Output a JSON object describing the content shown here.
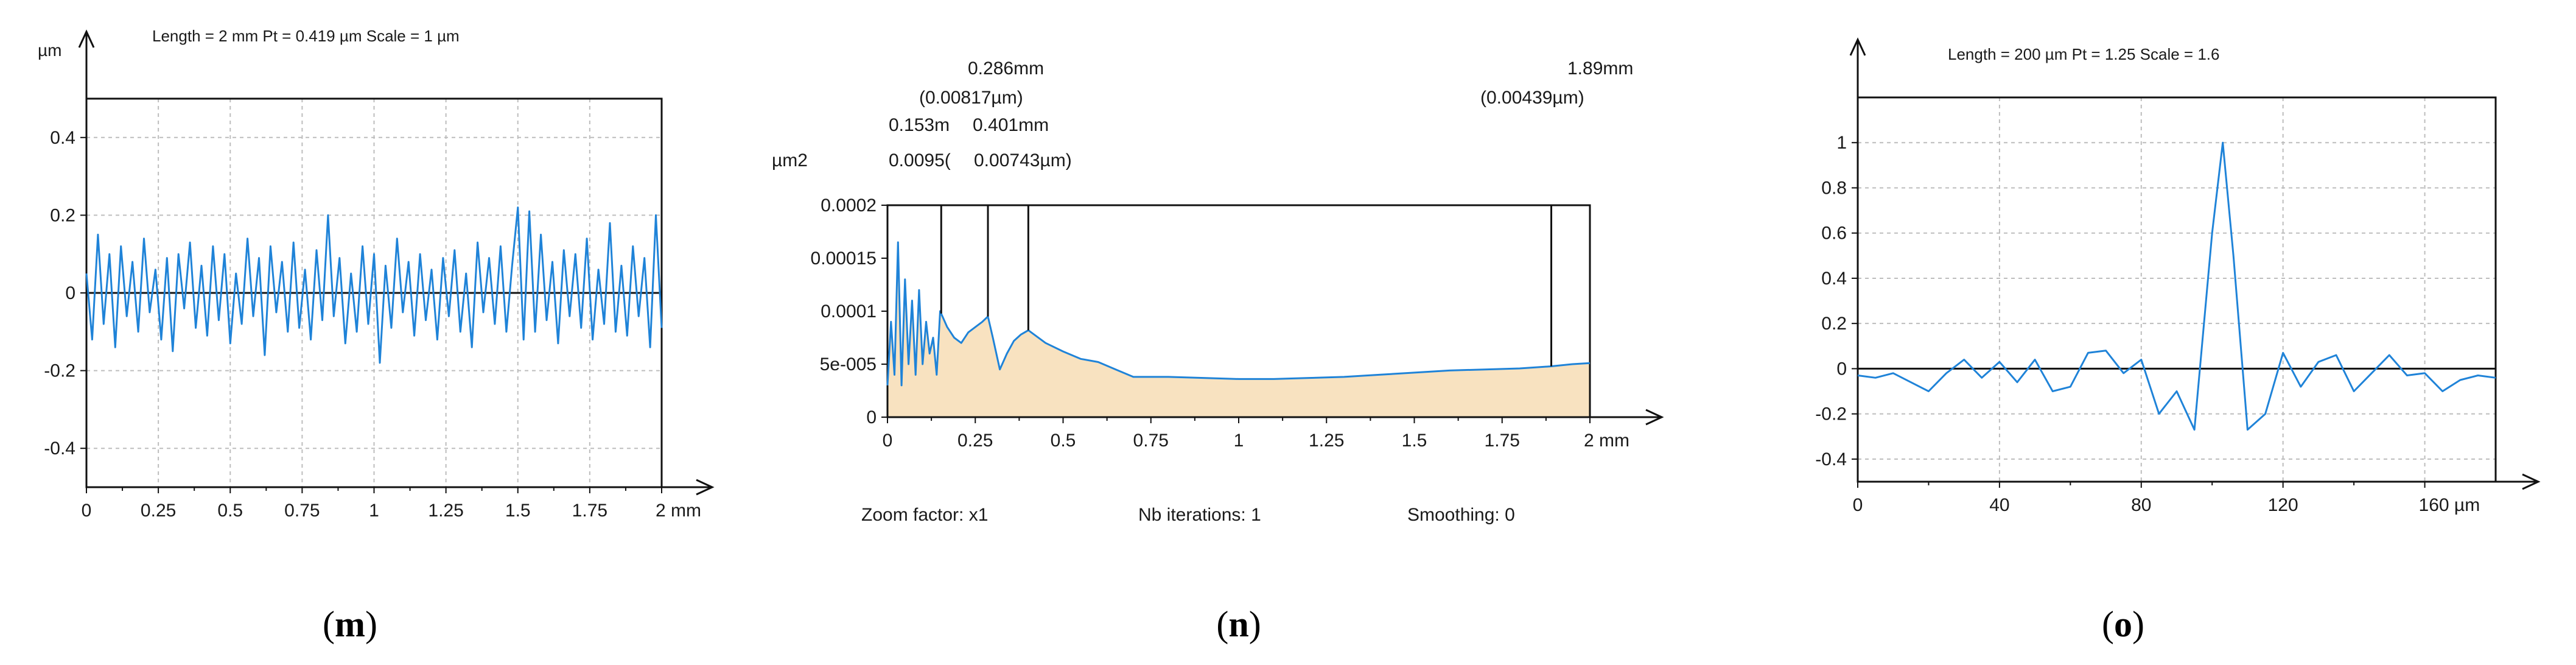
{
  "colors": {
    "series": "#1f83d8",
    "fill": "#f8e2c0",
    "axis": "#111111",
    "grid": "#bdbdbd",
    "frame": "#111111"
  },
  "chart_data": [
    {
      "id": "m",
      "type": "line",
      "header": "Length = 2 mm  Pt = 0.419 µm  Scale = 1 µm",
      "ylabel": "µm",
      "x_unit": "mm",
      "xlim": [
        0,
        2
      ],
      "ylim": [
        -0.5,
        0.5
      ],
      "x_ticks": [
        0,
        0.25,
        0.5,
        0.75,
        1,
        1.25,
        1.5,
        1.75,
        2
      ],
      "x_tick_labels": [
        "0",
        "0.25",
        "0.5",
        "0.75",
        "1",
        "1.25",
        "1.5",
        "1.75",
        "2 mm"
      ],
      "y_ticks": [
        0.4,
        0.2,
        0,
        -0.2,
        -0.4
      ],
      "y_tick_labels": [
        "0.4",
        "0.2",
        "0",
        "-0.2",
        "-0.4"
      ],
      "grid": true,
      "zero_line": true,
      "series": [
        {
          "x": [
            0,
            0.02,
            0.04,
            0.06,
            0.08,
            0.1,
            0.12,
            0.14,
            0.16,
            0.18,
            0.2,
            0.22,
            0.24,
            0.26,
            0.28,
            0.3,
            0.32,
            0.34,
            0.36,
            0.38,
            0.4,
            0.42,
            0.44,
            0.46,
            0.48,
            0.5,
            0.52,
            0.54,
            0.56,
            0.58,
            0.6,
            0.62,
            0.64,
            0.66,
            0.68,
            0.7,
            0.72,
            0.74,
            0.76,
            0.78,
            0.8,
            0.82,
            0.84,
            0.86,
            0.88,
            0.9,
            0.92,
            0.94,
            0.96,
            0.98,
            1,
            1.02,
            1.04,
            1.06,
            1.08,
            1.1,
            1.12,
            1.14,
            1.16,
            1.18,
            1.2,
            1.22,
            1.24,
            1.26,
            1.28,
            1.3,
            1.32,
            1.34,
            1.36,
            1.38,
            1.4,
            1.42,
            1.44,
            1.46,
            1.48,
            1.5,
            1.52,
            1.54,
            1.56,
            1.58,
            1.6,
            1.62,
            1.64,
            1.66,
            1.68,
            1.7,
            1.72,
            1.74,
            1.76,
            1.78,
            1.8,
            1.82,
            1.84,
            1.86,
            1.88,
            1.9,
            1.92,
            1.94,
            1.96,
            1.98,
            2
          ],
          "y": [
            0.05,
            -0.12,
            0.15,
            -0.08,
            0.1,
            -0.14,
            0.12,
            -0.06,
            0.08,
            -0.1,
            0.14,
            -0.05,
            0.06,
            -0.12,
            0.09,
            -0.15,
            0.1,
            -0.04,
            0.13,
            -0.09,
            0.07,
            -0.11,
            0.12,
            -0.07,
            0.1,
            -0.13,
            0.05,
            -0.08,
            0.14,
            -0.06,
            0.09,
            -0.16,
            0.12,
            -0.05,
            0.08,
            -0.1,
            0.13,
            -0.09,
            0.06,
            -0.12,
            0.11,
            -0.07,
            0.2,
            -0.06,
            0.09,
            -0.13,
            0.05,
            -0.1,
            0.12,
            -0.08,
            0.1,
            -0.18,
            0.07,
            -0.09,
            0.14,
            -0.05,
            0.08,
            -0.11,
            0.1,
            -0.07,
            0.06,
            -0.12,
            0.09,
            -0.06,
            0.11,
            -0.1,
            0.05,
            -0.14,
            0.13,
            -0.05,
            0.09,
            -0.08,
            0.12,
            -0.1,
            0.07,
            0.22,
            -0.12,
            0.21,
            -0.1,
            0.15,
            -0.07,
            0.08,
            -0.13,
            0.11,
            -0.06,
            0.1,
            -0.09,
            0.14,
            -0.12,
            0.06,
            -0.08,
            0.18,
            -0.1,
            0.07,
            -0.11,
            0.12,
            -0.06,
            0.09,
            -0.14,
            0.2,
            -0.09
          ]
        }
      ]
    },
    {
      "id": "n",
      "type": "area",
      "ylabel": "µm2",
      "x_unit": "mm",
      "xlim": [
        0,
        2
      ],
      "ylim": [
        0,
        0.0002
      ],
      "x_ticks": [
        0,
        0.25,
        0.5,
        0.75,
        1,
        1.25,
        1.5,
        1.75,
        2
      ],
      "x_tick_labels": [
        "0",
        "0.25",
        "0.5",
        "0.75",
        "1",
        "1.25",
        "1.5",
        "1.75",
        "2 mm"
      ],
      "y_ticks": [
        0.0002,
        0.00015,
        0.0001,
        5e-05,
        0
      ],
      "y_tick_labels": [
        "0.0002",
        "0.00015",
        "0.0001",
        "5e-005",
        "0"
      ],
      "grid": false,
      "markers": [
        {
          "x": 0.153,
          "label": "0.153m",
          "value": "0.0095("
        },
        {
          "x": 0.286,
          "label": "0.286mm",
          "value": "(0.00817µm)"
        },
        {
          "x": 0.401,
          "label": "0.401mm",
          "value": "0.00743µm)"
        },
        {
          "x": 1.89,
          "label": "1.89mm",
          "value": "(0.00439µm)"
        }
      ],
      "footer": [
        "Zoom factor: x1",
        "Nb iterations: 1",
        "Smoothing: 0"
      ],
      "series": [
        {
          "x": [
            0,
            0.01,
            0.02,
            0.03,
            0.04,
            0.05,
            0.06,
            0.07,
            0.08,
            0.09,
            0.1,
            0.11,
            0.12,
            0.13,
            0.14,
            0.15,
            0.17,
            0.19,
            0.21,
            0.23,
            0.25,
            0.27,
            0.286,
            0.3,
            0.32,
            0.34,
            0.36,
            0.38,
            0.401,
            0.45,
            0.5,
            0.55,
            0.6,
            0.65,
            0.7,
            0.8,
            0.9,
            1,
            1.1,
            1.2,
            1.3,
            1.4,
            1.5,
            1.6,
            1.7,
            1.8,
            1.89,
            1.95,
            2
          ],
          "y": [
            3e-05,
            9e-05,
            4e-05,
            0.000165,
            3e-05,
            0.00013,
            5e-05,
            0.00011,
            4e-05,
            0.00012,
            5e-05,
            9e-05,
            6e-05,
            7.5e-05,
            4e-05,
            0.0001,
            8.5e-05,
            7.5e-05,
            7e-05,
            8e-05,
            8.5e-05,
            9e-05,
            9.5e-05,
            7.5e-05,
            4.5e-05,
            6e-05,
            7.2e-05,
            7.8e-05,
            8.2e-05,
            7e-05,
            6.2e-05,
            5.5e-05,
            5.2e-05,
            4.5e-05,
            3.8e-05,
            3.8e-05,
            3.7e-05,
            3.6e-05,
            3.6e-05,
            3.7e-05,
            3.8e-05,
            4e-05,
            4.2e-05,
            4.4e-05,
            4.5e-05,
            4.6e-05,
            4.8e-05,
            5e-05,
            5.1e-05
          ]
        }
      ]
    },
    {
      "id": "o",
      "type": "line",
      "header": "Length = 200 µm  Pt = 1.25    Scale = 1.6",
      "x_unit": "µm",
      "xlim": [
        0,
        180
      ],
      "ylim": [
        -0.5,
        1.2
      ],
      "x_ticks": [
        0,
        40,
        80,
        120,
        160
      ],
      "x_tick_labels": [
        "0",
        "40",
        "80",
        "120",
        "160 µm"
      ],
      "y_ticks": [
        1,
        0.8,
        0.6,
        0.4,
        0.2,
        0,
        -0.2,
        -0.4
      ],
      "y_tick_labels": [
        "1",
        "0.8",
        "0.6",
        "0.4",
        "0.2",
        "0",
        "-0.2",
        "-0.4"
      ],
      "grid": true,
      "zero_line": true,
      "series": [
        {
          "x": [
            0,
            5,
            10,
            15,
            20,
            25,
            30,
            35,
            40,
            45,
            50,
            55,
            60,
            65,
            70,
            75,
            80,
            85,
            90,
            95,
            100,
            103,
            106,
            110,
            115,
            120,
            125,
            130,
            135,
            140,
            145,
            150,
            155,
            160,
            165,
            170,
            175,
            180
          ],
          "y": [
            -0.03,
            -0.04,
            -0.02,
            -0.06,
            -0.1,
            -0.02,
            0.04,
            -0.04,
            0.03,
            -0.06,
            0.04,
            -0.1,
            -0.08,
            0.07,
            0.08,
            -0.02,
            0.04,
            -0.2,
            -0.1,
            -0.27,
            0.6,
            1.0,
            0.5,
            -0.27,
            -0.2,
            0.07,
            -0.08,
            0.03,
            0.06,
            -0.1,
            -0.02,
            0.06,
            -0.03,
            -0.02,
            -0.1,
            -0.05,
            -0.03,
            -0.04
          ]
        }
      ]
    }
  ],
  "captions": [
    {
      "open": "(",
      "letter": "m",
      "close": ")"
    },
    {
      "open": "(",
      "letter": "n",
      "close": ")"
    },
    {
      "open": "(",
      "letter": "o",
      "close": ")"
    }
  ]
}
